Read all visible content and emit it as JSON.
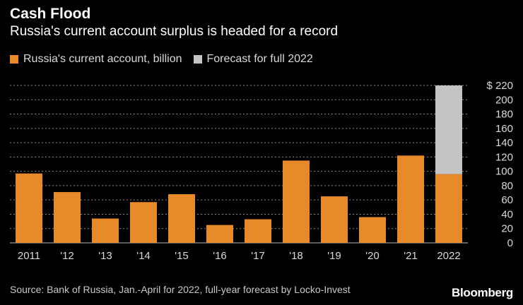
{
  "header": {
    "title": "Cash Flood",
    "subtitle": "Russia's current account surplus is headed for a record"
  },
  "legend": [
    {
      "label": "Russia's current account, billion",
      "color": "#e8892a"
    },
    {
      "label": "Forecast for full 2022",
      "color": "#c4c4c4"
    }
  ],
  "chart_data": {
    "type": "bar",
    "stacked": true,
    "categories": [
      "2011",
      "'12",
      "'13",
      "'14",
      "'15",
      "'16",
      "'17",
      "'18",
      "'19",
      "'20",
      "'21",
      "2022"
    ],
    "series": [
      {
        "name": "Russia's current account, billion",
        "color": "#e8892a",
        "values": [
          97,
          71,
          34,
          57,
          68,
          25,
          33,
          115,
          65,
          36,
          122,
          96
        ]
      },
      {
        "name": "Forecast for full 2022",
        "color": "#c4c4c4",
        "values": [
          0,
          0,
          0,
          0,
          0,
          0,
          0,
          0,
          0,
          0,
          0,
          124
        ]
      }
    ],
    "y_ticks": [
      "$ 220",
      "200",
      "180",
      "160",
      "140",
      "120",
      "100",
      "80",
      "60",
      "40",
      "20",
      "0"
    ],
    "ylim": [
      0,
      220
    ],
    "grid": true,
    "axis_side": "right"
  },
  "footer": {
    "source": "Source: Bank of Russia, Jan.-April for 2022, full-year forecast by Locko-Invest",
    "brand": "Bloomberg"
  },
  "colors": {
    "background": "#000000",
    "grid": "#8a8a8a",
    "axis_text": "#d9d9d9"
  }
}
